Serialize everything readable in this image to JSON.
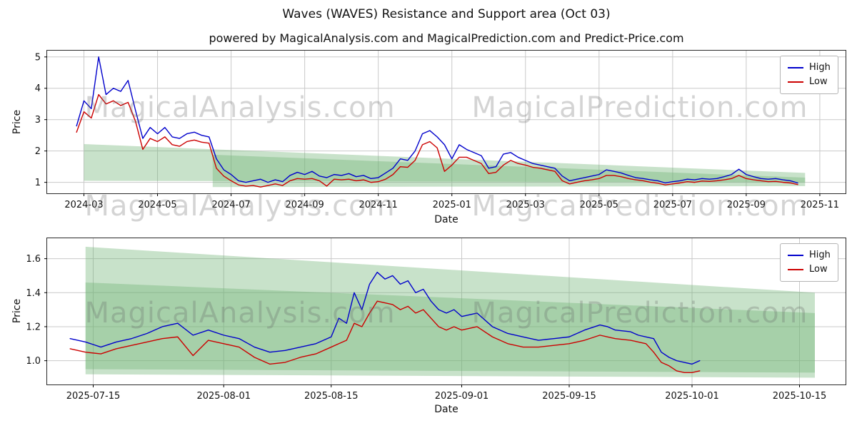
{
  "figure": {
    "title": "Waves (WAVES) Resistance and Support area (Oct 03)",
    "subtitle": "powered by MagicalAnalysis.com and MagicalPrediction.com and Predict-Price.com",
    "watermarks": [
      "MagicalAnalysis.com",
      "MagicalPrediction.com"
    ],
    "colors": {
      "high": "#0000cc",
      "low": "#cc0000",
      "band": "rgba(110,180,115,0.38)",
      "grid": "#c9c9c9",
      "watermark": "rgba(100,100,100,0.28)"
    }
  },
  "chart_data": [
    {
      "type": "line",
      "title": "",
      "xlabel": "Date",
      "ylabel": "Price",
      "legend_position": "upper right",
      "grid": true,
      "x_unit": "months since 2024-03",
      "xlim": [
        -1,
        20.7
      ],
      "ylim": [
        0.65,
        5.2
      ],
      "xticks": [
        {
          "v": 0,
          "label": "2024-03"
        },
        {
          "v": 2,
          "label": "2024-05"
        },
        {
          "v": 4,
          "label": "2024-07"
        },
        {
          "v": 6,
          "label": "2024-09"
        },
        {
          "v": 8,
          "label": "2024-11"
        },
        {
          "v": 10,
          "label": "2025-01"
        },
        {
          "v": 12,
          "label": "2025-03"
        },
        {
          "v": 14,
          "label": "2025-05"
        },
        {
          "v": 16,
          "label": "2025-07"
        },
        {
          "v": 18,
          "label": "2025-09"
        },
        {
          "v": 20,
          "label": "2025-11"
        }
      ],
      "yticks": [
        {
          "v": 1,
          "label": "1"
        },
        {
          "v": 2,
          "label": "2"
        },
        {
          "v": 3,
          "label": "3"
        },
        {
          "v": 4,
          "label": "4"
        },
        {
          "v": 5,
          "label": "5"
        }
      ],
      "x": [
        -0.2,
        0,
        0.2,
        0.4,
        0.6,
        0.8,
        1,
        1.2,
        1.4,
        1.6,
        1.8,
        2,
        2.2,
        2.4,
        2.6,
        2.8,
        3,
        3.2,
        3.4,
        3.6,
        3.8,
        4,
        4.2,
        4.4,
        4.6,
        4.8,
        5,
        5.2,
        5.4,
        5.6,
        5.8,
        6,
        6.2,
        6.4,
        6.6,
        6.8,
        7,
        7.2,
        7.4,
        7.6,
        7.8,
        8,
        8.2,
        8.4,
        8.6,
        8.8,
        9,
        9.2,
        9.4,
        9.6,
        9.8,
        10,
        10.2,
        10.4,
        10.6,
        10.8,
        11,
        11.2,
        11.4,
        11.6,
        11.8,
        12,
        12.2,
        12.4,
        12.6,
        12.8,
        13,
        13.2,
        13.4,
        13.6,
        13.8,
        14,
        14.2,
        14.4,
        14.6,
        14.8,
        15,
        15.2,
        15.4,
        15.6,
        15.8,
        16,
        16.2,
        16.4,
        16.6,
        16.8,
        17,
        17.2,
        17.4,
        17.6,
        17.8,
        18,
        18.2,
        18.4,
        18.6,
        18.8,
        19,
        19.2,
        19.4
      ],
      "series": [
        {
          "name": "High",
          "color": "#0000cc",
          "values": [
            2.8,
            3.6,
            3.35,
            5.0,
            3.8,
            4.0,
            3.9,
            4.25,
            3.3,
            2.4,
            2.75,
            2.55,
            2.75,
            2.45,
            2.4,
            2.55,
            2.6,
            2.5,
            2.45,
            1.75,
            1.4,
            1.25,
            1.05,
            1.0,
            1.05,
            1.1,
            1.0,
            1.08,
            1.02,
            1.22,
            1.32,
            1.25,
            1.35,
            1.2,
            1.15,
            1.25,
            1.22,
            1.28,
            1.18,
            1.22,
            1.12,
            1.15,
            1.3,
            1.45,
            1.75,
            1.7,
            2.0,
            2.55,
            2.65,
            2.45,
            2.2,
            1.75,
            2.2,
            2.05,
            1.95,
            1.85,
            1.45,
            1.5,
            1.9,
            1.95,
            1.8,
            1.7,
            1.6,
            1.55,
            1.5,
            1.45,
            1.2,
            1.05,
            1.1,
            1.15,
            1.2,
            1.25,
            1.4,
            1.35,
            1.3,
            1.22,
            1.15,
            1.12,
            1.08,
            1.05,
            0.98,
            1.02,
            1.05,
            1.1,
            1.08,
            1.12,
            1.1,
            1.12,
            1.18,
            1.25,
            1.42,
            1.25,
            1.18,
            1.12,
            1.1,
            1.12,
            1.08,
            1.05,
            0.98
          ]
        },
        {
          "name": "Low",
          "color": "#cc0000",
          "values": [
            2.6,
            3.25,
            3.05,
            3.8,
            3.5,
            3.6,
            3.45,
            3.55,
            2.95,
            2.05,
            2.4,
            2.3,
            2.45,
            2.2,
            2.15,
            2.3,
            2.35,
            2.28,
            2.25,
            1.45,
            1.2,
            1.05,
            0.92,
            0.88,
            0.9,
            0.85,
            0.9,
            0.95,
            0.9,
            1.05,
            1.12,
            1.1,
            1.12,
            1.05,
            0.88,
            1.1,
            1.08,
            1.1,
            1.05,
            1.08,
            1.0,
            1.02,
            1.1,
            1.25,
            1.5,
            1.48,
            1.7,
            2.2,
            2.3,
            2.1,
            1.35,
            1.55,
            1.8,
            1.8,
            1.7,
            1.6,
            1.28,
            1.32,
            1.55,
            1.7,
            1.6,
            1.55,
            1.48,
            1.45,
            1.4,
            1.35,
            1.05,
            0.95,
            1.0,
            1.05,
            1.08,
            1.12,
            1.22,
            1.22,
            1.18,
            1.12,
            1.08,
            1.05,
            1.0,
            0.97,
            0.92,
            0.95,
            0.98,
            1.02,
            1.0,
            1.04,
            1.03,
            1.05,
            1.08,
            1.12,
            1.22,
            1.12,
            1.08,
            1.05,
            1.02,
            1.03,
            1.0,
            0.98,
            0.93
          ]
        }
      ],
      "bands": [
        [
          [
            0,
            2.22
          ],
          [
            19.6,
            1.3
          ],
          [
            19.6,
            1.0
          ],
          [
            0,
            1.05
          ]
        ],
        [
          [
            3.5,
            1.88
          ],
          [
            19.6,
            1.15
          ],
          [
            19.6,
            0.88
          ],
          [
            3.5,
            0.85
          ]
        ]
      ]
    },
    {
      "type": "line",
      "title": "",
      "xlabel": "Date",
      "ylabel": "Price",
      "legend_position": "upper right",
      "grid": true,
      "x_unit": "days since 2025-07-15",
      "xlim": [
        -6,
        98
      ],
      "ylim": [
        0.86,
        1.72
      ],
      "xticks": [
        {
          "v": 0,
          "label": "2025-07-15"
        },
        {
          "v": 17,
          "label": "2025-08-01"
        },
        {
          "v": 31,
          "label": "2025-08-15"
        },
        {
          "v": 48,
          "label": "2025-09-01"
        },
        {
          "v": 62,
          "label": "2025-09-15"
        },
        {
          "v": 78,
          "label": "2025-10-01"
        },
        {
          "v": 92,
          "label": "2025-10-15"
        }
      ],
      "yticks": [
        {
          "v": 1.0,
          "label": "1.0"
        },
        {
          "v": 1.2,
          "label": "1.2"
        },
        {
          "v": 1.4,
          "label": "1.4"
        },
        {
          "v": 1.6,
          "label": "1.6"
        }
      ],
      "x": [
        -3,
        -1,
        1,
        3,
        5,
        7,
        9,
        11,
        13,
        15,
        17,
        19,
        21,
        23,
        25,
        27,
        29,
        31,
        32,
        33,
        34,
        35,
        36,
        37,
        38,
        39,
        40,
        41,
        42,
        43,
        44,
        45,
        46,
        47,
        48,
        50,
        52,
        54,
        56,
        58,
        60,
        62,
        64,
        66,
        67,
        68,
        70,
        71,
        72,
        73,
        74,
        75,
        76,
        77,
        78,
        79
      ],
      "series": [
        {
          "name": "High",
          "color": "#0000cc",
          "values": [
            1.13,
            1.11,
            1.08,
            1.11,
            1.13,
            1.16,
            1.2,
            1.22,
            1.15,
            1.18,
            1.15,
            1.13,
            1.08,
            1.05,
            1.06,
            1.08,
            1.1,
            1.14,
            1.25,
            1.22,
            1.4,
            1.3,
            1.45,
            1.52,
            1.48,
            1.5,
            1.45,
            1.47,
            1.4,
            1.42,
            1.35,
            1.3,
            1.28,
            1.3,
            1.26,
            1.28,
            1.2,
            1.16,
            1.14,
            1.12,
            1.13,
            1.14,
            1.18,
            1.21,
            1.2,
            1.18,
            1.17,
            1.15,
            1.14,
            1.13,
            1.05,
            1.02,
            1.0,
            0.99,
            0.98,
            1.0
          ]
        },
        {
          "name": "Low",
          "color": "#cc0000",
          "values": [
            1.07,
            1.05,
            1.04,
            1.07,
            1.09,
            1.11,
            1.13,
            1.14,
            1.03,
            1.12,
            1.1,
            1.08,
            1.02,
            0.98,
            0.99,
            1.02,
            1.04,
            1.08,
            1.1,
            1.12,
            1.22,
            1.2,
            1.28,
            1.35,
            1.34,
            1.33,
            1.3,
            1.32,
            1.28,
            1.3,
            1.25,
            1.2,
            1.18,
            1.2,
            1.18,
            1.2,
            1.14,
            1.1,
            1.08,
            1.08,
            1.09,
            1.1,
            1.12,
            1.15,
            1.14,
            1.13,
            1.12,
            1.11,
            1.1,
            1.05,
            0.99,
            0.97,
            0.94,
            0.93,
            0.93,
            0.94
          ]
        }
      ],
      "bands": [
        [
          [
            -1,
            1.67
          ],
          [
            94,
            1.4
          ],
          [
            94,
            0.93
          ],
          [
            -1,
            0.95
          ]
        ],
        [
          [
            -1,
            1.46
          ],
          [
            94,
            1.28
          ],
          [
            94,
            0.9
          ],
          [
            -1,
            0.92
          ]
        ]
      ]
    }
  ]
}
